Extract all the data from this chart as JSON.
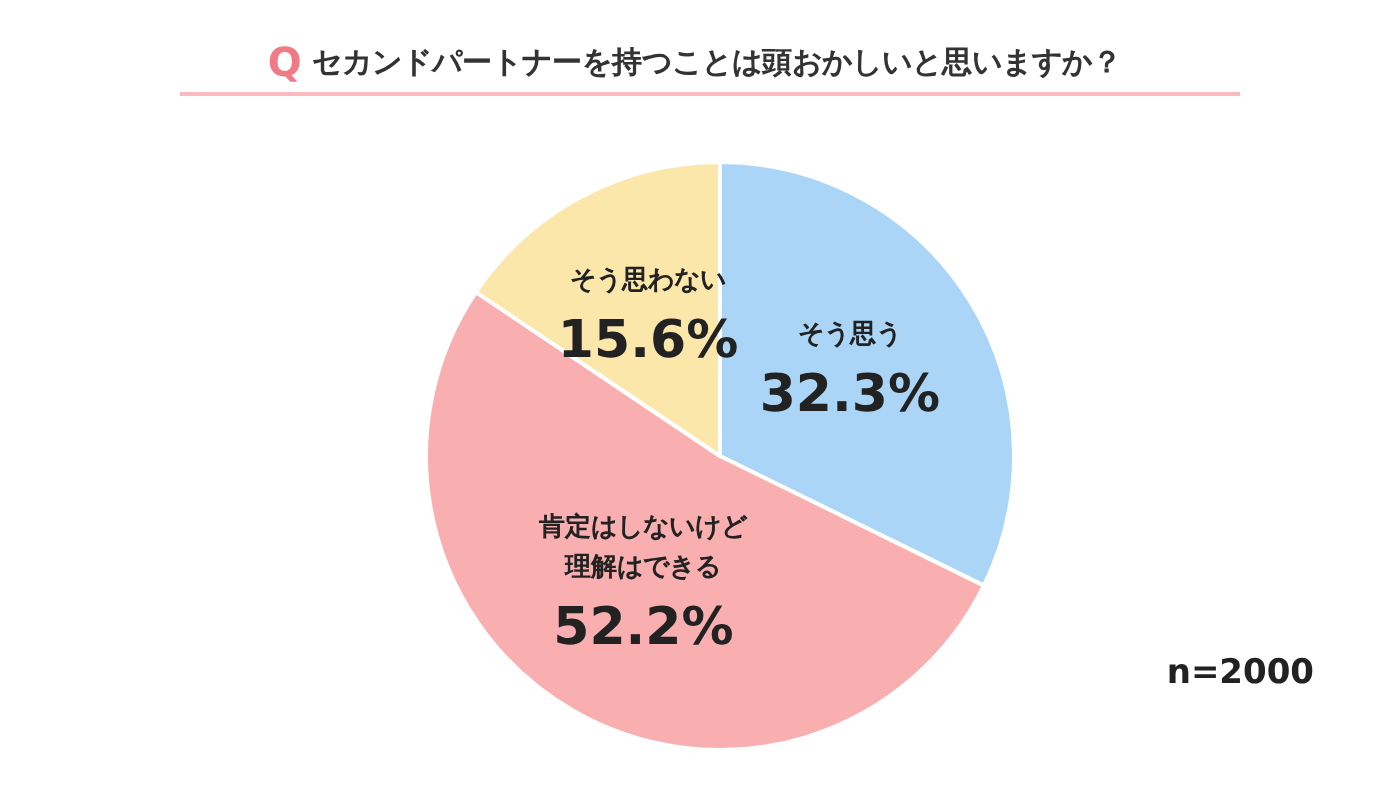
{
  "chart_data": {
    "type": "pie",
    "title": "Q セカンドパートナーを持つことは頭おかしいと思いますか？",
    "categories": [
      "そう思う",
      "肯定はしないけど理解はできる",
      "そう思わない"
    ],
    "values": [
      32.3,
      52.2,
      15.6
    ],
    "colors": [
      "#aad5f7",
      "#f9afb0",
      "#fbe7aa"
    ],
    "value_labels": [
      "32.3%",
      "52.2%",
      "15.6%"
    ],
    "annotations": [
      "n=2000"
    ]
  }
}
